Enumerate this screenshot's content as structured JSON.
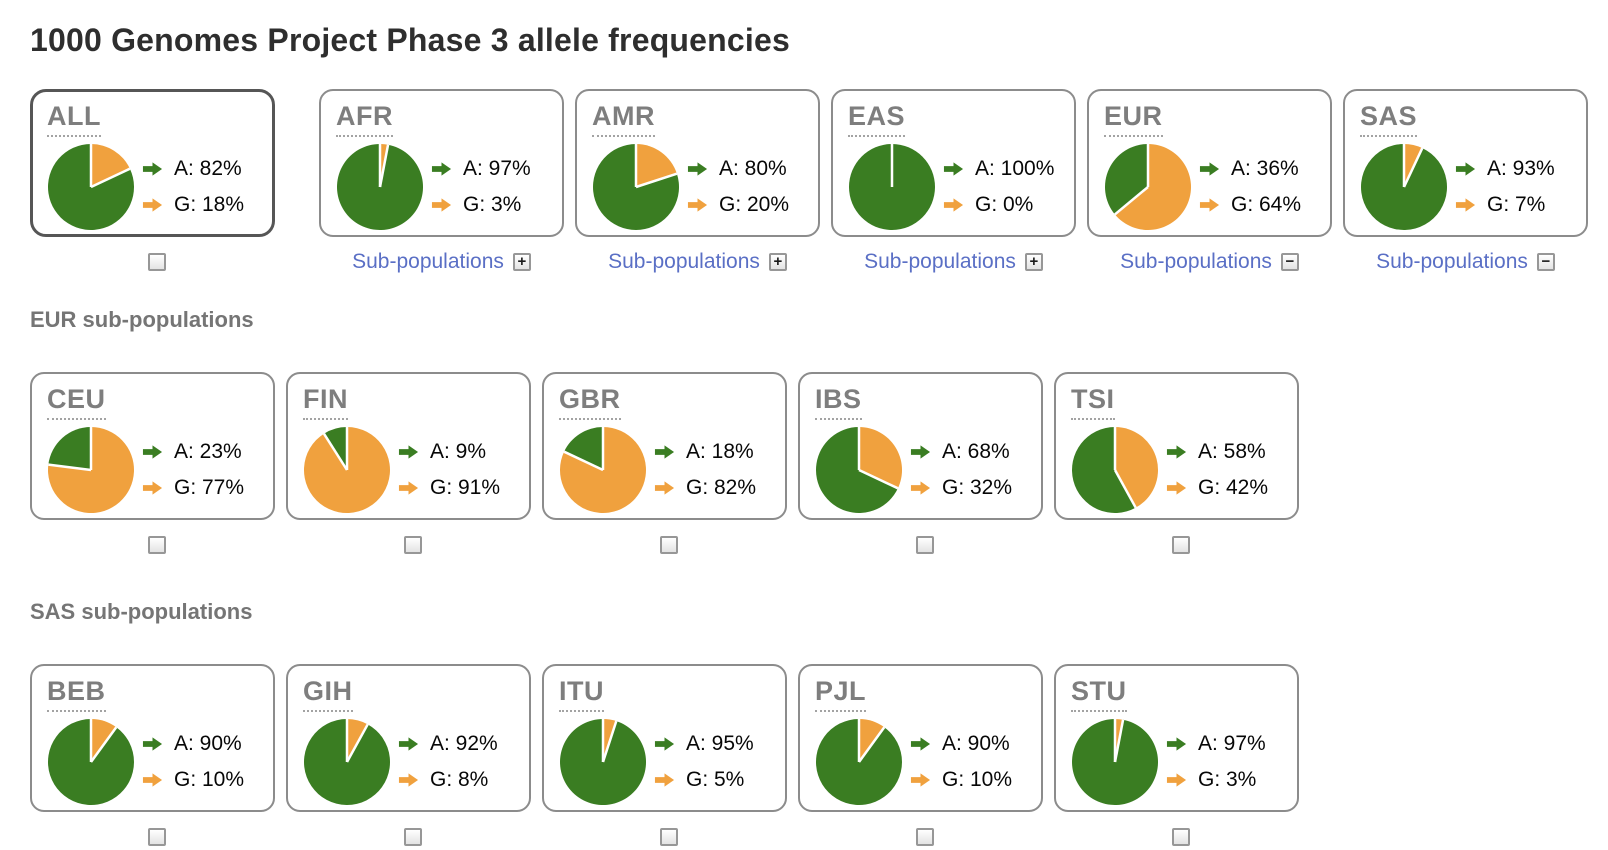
{
  "title": "1000 Genomes Project Phase 3 allele frequencies",
  "sub_populations_link_label": "Sub-populations",
  "colors": {
    "allele_a": "#3a7d22",
    "allele_g": "#f0a13e",
    "link_blue": "#5a6fc5",
    "card_border": "#8c8c8c",
    "selected_card_border": "#565656",
    "label_gray": "#7e7e7e"
  },
  "icons": {
    "expand_symbol": "+",
    "collapse_symbol": "−",
    "legend_arrow": "right-arrow"
  },
  "populations": [
    {
      "code": "ALL",
      "a_pct": 82,
      "g_pct": 18,
      "a_text": "A: 82%",
      "g_text": "G: 18%",
      "selected": true,
      "sub_link": false,
      "expanded": false
    },
    {
      "code": "AFR",
      "a_pct": 97,
      "g_pct": 3,
      "a_text": "A: 97%",
      "g_text": "G: 3%",
      "selected": false,
      "sub_link": true,
      "expanded": false
    },
    {
      "code": "AMR",
      "a_pct": 80,
      "g_pct": 20,
      "a_text": "A: 80%",
      "g_text": "G: 20%",
      "selected": false,
      "sub_link": true,
      "expanded": false
    },
    {
      "code": "EAS",
      "a_pct": 100,
      "g_pct": 0,
      "a_text": "A: 100%",
      "g_text": "G: 0%",
      "selected": false,
      "sub_link": true,
      "expanded": false
    },
    {
      "code": "EUR",
      "a_pct": 36,
      "g_pct": 64,
      "a_text": "A: 36%",
      "g_text": "G: 64%",
      "selected": false,
      "sub_link": true,
      "expanded": true
    },
    {
      "code": "SAS",
      "a_pct": 93,
      "g_pct": 7,
      "a_text": "A: 93%",
      "g_text": "G: 7%",
      "selected": false,
      "sub_link": true,
      "expanded": true
    }
  ],
  "groups": [
    {
      "heading": "EUR sub-populations",
      "populations": [
        {
          "code": "CEU",
          "a_pct": 23,
          "g_pct": 77,
          "a_text": "A: 23%",
          "g_text": "G: 77%",
          "selected": false,
          "sub_link": false,
          "expanded": false
        },
        {
          "code": "FIN",
          "a_pct": 9,
          "g_pct": 91,
          "a_text": "A: 9%",
          "g_text": "G: 91%",
          "selected": false,
          "sub_link": false,
          "expanded": false
        },
        {
          "code": "GBR",
          "a_pct": 18,
          "g_pct": 82,
          "a_text": "A: 18%",
          "g_text": "G: 82%",
          "selected": false,
          "sub_link": false,
          "expanded": false
        },
        {
          "code": "IBS",
          "a_pct": 68,
          "g_pct": 32,
          "a_text": "A: 68%",
          "g_text": "G: 32%",
          "selected": false,
          "sub_link": false,
          "expanded": false
        },
        {
          "code": "TSI",
          "a_pct": 58,
          "g_pct": 42,
          "a_text": "A: 58%",
          "g_text": "G: 42%",
          "selected": false,
          "sub_link": false,
          "expanded": false
        }
      ]
    },
    {
      "heading": "SAS sub-populations",
      "populations": [
        {
          "code": "BEB",
          "a_pct": 90,
          "g_pct": 10,
          "a_text": "A: 90%",
          "g_text": "G: 10%",
          "selected": false,
          "sub_link": false,
          "expanded": false
        },
        {
          "code": "GIH",
          "a_pct": 92,
          "g_pct": 8,
          "a_text": "A: 92%",
          "g_text": "G: 8%",
          "selected": false,
          "sub_link": false,
          "expanded": false
        },
        {
          "code": "ITU",
          "a_pct": 95,
          "g_pct": 5,
          "a_text": "A: 95%",
          "g_text": "G: 5%",
          "selected": false,
          "sub_link": false,
          "expanded": false
        },
        {
          "code": "PJL",
          "a_pct": 90,
          "g_pct": 10,
          "a_text": "A: 90%",
          "g_text": "G: 10%",
          "selected": false,
          "sub_link": false,
          "expanded": false
        },
        {
          "code": "STU",
          "a_pct": 97,
          "g_pct": 3,
          "a_text": "A: 97%",
          "g_text": "G: 3%",
          "selected": false,
          "sub_link": false,
          "expanded": false
        }
      ]
    }
  ],
  "chart_data": [
    {
      "type": "pie",
      "title": "ALL",
      "categories": [
        "A",
        "G"
      ],
      "values": [
        82,
        18
      ]
    },
    {
      "type": "pie",
      "title": "AFR",
      "categories": [
        "A",
        "G"
      ],
      "values": [
        97,
        3
      ]
    },
    {
      "type": "pie",
      "title": "AMR",
      "categories": [
        "A",
        "G"
      ],
      "values": [
        80,
        20
      ]
    },
    {
      "type": "pie",
      "title": "EAS",
      "categories": [
        "A",
        "G"
      ],
      "values": [
        100,
        0
      ]
    },
    {
      "type": "pie",
      "title": "EUR",
      "categories": [
        "A",
        "G"
      ],
      "values": [
        36,
        64
      ]
    },
    {
      "type": "pie",
      "title": "SAS",
      "categories": [
        "A",
        "G"
      ],
      "values": [
        93,
        7
      ]
    },
    {
      "type": "pie",
      "title": "CEU",
      "categories": [
        "A",
        "G"
      ],
      "values": [
        23,
        77
      ]
    },
    {
      "type": "pie",
      "title": "FIN",
      "categories": [
        "A",
        "G"
      ],
      "values": [
        9,
        91
      ]
    },
    {
      "type": "pie",
      "title": "GBR",
      "categories": [
        "A",
        "G"
      ],
      "values": [
        18,
        82
      ]
    },
    {
      "type": "pie",
      "title": "IBS",
      "categories": [
        "A",
        "G"
      ],
      "values": [
        68,
        32
      ]
    },
    {
      "type": "pie",
      "title": "TSI",
      "categories": [
        "A",
        "G"
      ],
      "values": [
        58,
        42
      ]
    },
    {
      "type": "pie",
      "title": "BEB",
      "categories": [
        "A",
        "G"
      ],
      "values": [
        90,
        10
      ]
    },
    {
      "type": "pie",
      "title": "GIH",
      "categories": [
        "A",
        "G"
      ],
      "values": [
        92,
        8
      ]
    },
    {
      "type": "pie",
      "title": "ITU",
      "categories": [
        "A",
        "G"
      ],
      "values": [
        95,
        5
      ]
    },
    {
      "type": "pie",
      "title": "PJL",
      "categories": [
        "A",
        "G"
      ],
      "values": [
        90,
        10
      ]
    },
    {
      "type": "pie",
      "title": "STU",
      "categories": [
        "A",
        "G"
      ],
      "values": [
        97,
        3
      ]
    }
  ]
}
